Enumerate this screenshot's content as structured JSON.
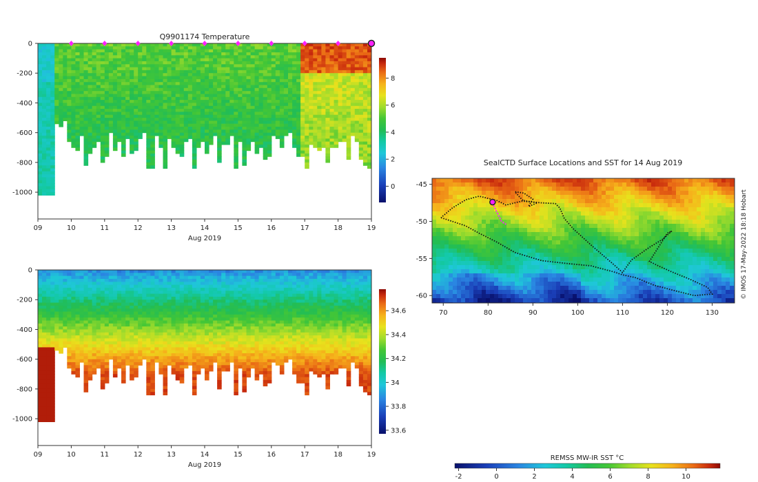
{
  "chart_data": [
    {
      "id": "temperature",
      "type": "heatmap",
      "title": "Q9901174  Temperature",
      "xlabel": "Aug 2019",
      "x_ticks": [
        "09",
        "10",
        "11",
        "12",
        "13",
        "14",
        "15",
        "16",
        "17",
        "18",
        "19"
      ],
      "y_ticks": [
        0,
        -200,
        -400,
        -600,
        -800,
        -1000
      ],
      "ylim": [
        -1180,
        0
      ],
      "xlim": [
        9,
        19
      ],
      "colorbar": {
        "ticks": [
          0,
          2,
          4,
          6,
          8
        ],
        "range": [
          -1.2,
          9.5
        ]
      },
      "profile_markers_x": [
        10,
        11,
        12,
        13,
        14,
        15,
        16,
        17,
        18
      ],
      "last_profile_x": 19,
      "palette": [
        "#08106b",
        "#1a3fb8",
        "#2a86e2",
        "#1fc7d9",
        "#13c9a6",
        "#22bd55",
        "#44c636",
        "#a0dc2c",
        "#e8e21c",
        "#f6b21b",
        "#ea6b15",
        "#c82a0d",
        "#8e0a04"
      ]
    },
    {
      "id": "salinity",
      "type": "heatmap",
      "title": "",
      "xlabel": "Aug 2019",
      "x_ticks": [
        "09",
        "10",
        "11",
        "12",
        "13",
        "14",
        "15",
        "16",
        "17",
        "18",
        "19"
      ],
      "y_ticks": [
        0,
        -200,
        -400,
        -600,
        -800,
        -1000
      ],
      "ylim": [
        -1180,
        0
      ],
      "xlim": [
        9,
        19
      ],
      "colorbar": {
        "ticks": [
          "33.6",
          "33.8",
          "34",
          "34.2",
          "34.4",
          "34.6"
        ],
        "range": [
          33.57,
          34.78
        ]
      }
    },
    {
      "id": "map",
      "type": "heatmap",
      "title": "SealCTD Surface Locations and SST for 14 Aug 2019",
      "x_ticks": [
        70,
        80,
        90,
        100,
        110,
        120,
        130
      ],
      "y_ticks": [
        -45,
        -50,
        -55,
        -60
      ],
      "xlim": [
        67.5,
        135
      ],
      "ylim": [
        -61,
        -44.2
      ],
      "colorbar": {
        "label": "REMSS MW-IR SST °C",
        "ticks": [
          -2,
          0,
          2,
          4,
          6,
          8,
          10
        ],
        "range": [
          -2.2,
          11.8
        ]
      },
      "credit": "© IMOS 17-May-2022 18:18 Hobart",
      "track_lonlat": [
        [
          69.5,
          -49.5
        ],
        [
          72,
          -50
        ],
        [
          75,
          -50.6
        ],
        [
          78,
          -51.6
        ],
        [
          82,
          -52.8
        ],
        [
          86,
          -54.2
        ],
        [
          92,
          -55.3
        ],
        [
          98,
          -55.7
        ],
        [
          103,
          -56
        ],
        [
          108,
          -56.8
        ],
        [
          110,
          -57.2
        ],
        [
          113,
          -57.6
        ],
        [
          117,
          -58.6
        ],
        [
          122,
          -59.4
        ],
        [
          126,
          -60
        ],
        [
          130,
          -59.8
        ],
        [
          129,
          -58.9
        ],
        [
          125,
          -57.8
        ],
        [
          121,
          -56.8
        ],
        [
          118,
          -56
        ],
        [
          116,
          -55.4
        ],
        [
          118,
          -53.5
        ],
        [
          120,
          -51.6
        ],
        [
          121,
          -51.3
        ],
        [
          119,
          -52.4
        ],
        [
          116,
          -53.5
        ],
        [
          112,
          -55.2
        ],
        [
          110,
          -56.9
        ],
        [
          108,
          -55.8
        ],
        [
          103,
          -53.2
        ],
        [
          99,
          -51
        ],
        [
          97,
          -49.6
        ],
        [
          96,
          -48.2
        ],
        [
          95,
          -47.6
        ],
        [
          92,
          -47.5
        ],
        [
          88,
          -47.3
        ],
        [
          87,
          -46.7
        ],
        [
          86,
          -46
        ],
        [
          88,
          -46.2
        ],
        [
          90,
          -47
        ],
        [
          89,
          -48
        ],
        [
          91,
          -47.5
        ],
        [
          88,
          -47.2
        ],
        [
          84,
          -47.8
        ],
        [
          82,
          -47.2
        ],
        [
          78,
          -46.6
        ],
        [
          75,
          -47.1
        ],
        [
          72,
          -48.2
        ],
        [
          69.5,
          -49.5
        ]
      ],
      "recent_track_lonlat": [
        [
          81,
          -47.5
        ],
        [
          82,
          -48.8
        ],
        [
          83,
          -50
        ],
        [
          84,
          -50.4
        ]
      ],
      "current_position_lonlat": [
        81,
        -47.4
      ]
    }
  ]
}
